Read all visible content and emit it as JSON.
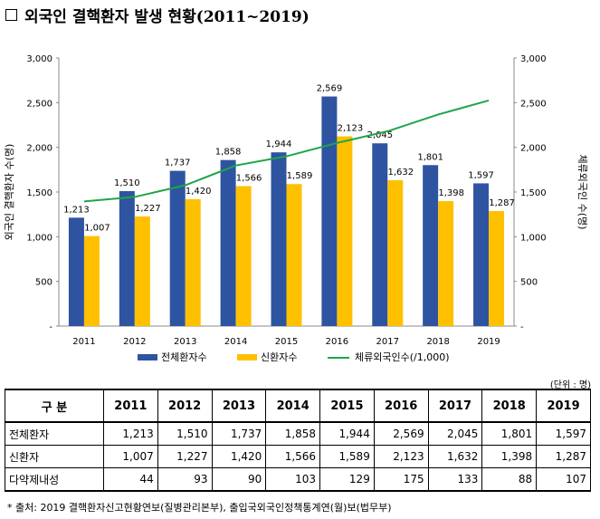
{
  "title": "외국인 결핵환자 발생 현황(2011~2019)",
  "chart_data": {
    "type": "bar",
    "categories": [
      "2011",
      "2012",
      "2013",
      "2014",
      "2015",
      "2016",
      "2017",
      "2018",
      "2019"
    ],
    "series": [
      {
        "name": "전체환자수",
        "type": "bar",
        "color": "#2E54A1",
        "values": [
          1213,
          1510,
          1737,
          1858,
          1944,
          2569,
          2045,
          1801,
          1597
        ],
        "labels": [
          "1,213",
          "1,510",
          "1,737",
          "1,858",
          "1,944",
          "2,569",
          "2,045",
          "1,801",
          "1,597"
        ]
      },
      {
        "name": "신환자수",
        "type": "bar",
        "color": "#FFC000",
        "values": [
          1007,
          1227,
          1420,
          1566,
          1589,
          2123,
          1632,
          1398,
          1287
        ],
        "labels": [
          "1,007",
          "1,227",
          "1,420",
          "1,566",
          "1,589",
          "2,123",
          "1,632",
          "1,398",
          "1,287"
        ]
      },
      {
        "name": "체류외국인수(/1,000)",
        "type": "line",
        "color": "#1EA548",
        "axis": "right",
        "values": [
          1395,
          1445,
          1576,
          1797,
          1900,
          2049,
          2180,
          2367,
          2524
        ]
      }
    ],
    "ylabel": "외국인 결핵환자 수(명)",
    "ylabel_right": "체류외국인 수(명)",
    "ylim": [
      0,
      3000
    ],
    "yticks": [
      "-",
      "500",
      "1,000",
      "1,500",
      "2,000",
      "2,500",
      "3,000"
    ],
    "legend_position": "bottom",
    "grid": false
  },
  "table": {
    "unit": "(단위 : 명)",
    "header_label": "구   분",
    "years": [
      "2011",
      "2012",
      "2013",
      "2014",
      "2015",
      "2016",
      "2017",
      "2018",
      "2019"
    ],
    "rows": [
      {
        "label": "전체환자",
        "values": [
          "1,213",
          "1,510",
          "1,737",
          "1,858",
          "1,944",
          "2,569",
          "2,045",
          "1,801",
          "1,597"
        ]
      },
      {
        "label": "신환자",
        "values": [
          "1,007",
          "1,227",
          "1,420",
          "1,566",
          "1,589",
          "2,123",
          "1,632",
          "1,398",
          "1,287"
        ]
      },
      {
        "label": "다약제내성",
        "values": [
          "44",
          "93",
          "90",
          "103",
          "129",
          "175",
          "133",
          "88",
          "107"
        ]
      }
    ]
  },
  "source": "* 출처: 2019 결핵환자신고현황연보(질병관리본부), 출입국외국인정책통계연(월)보(법무부)"
}
